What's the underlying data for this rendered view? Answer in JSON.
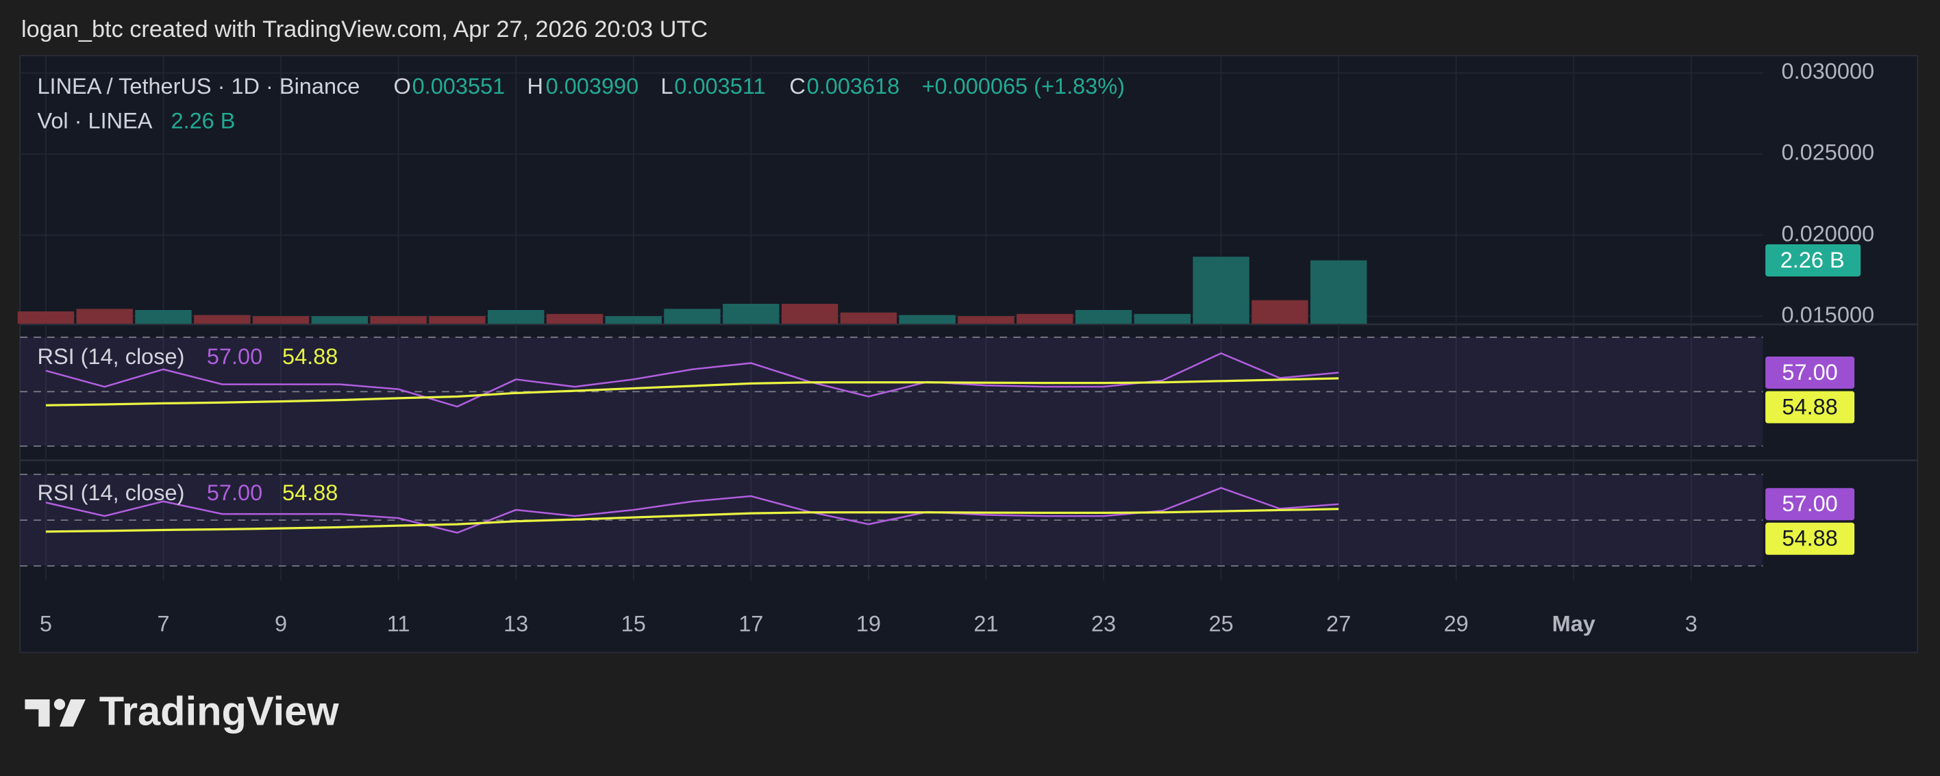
{
  "header": {
    "attribution": "logan_btc created with TradingView.com, Apr 27, 2026 20:03 UTC"
  },
  "legend": {
    "symbol": "LINEA / TetherUS · 1D · Binance",
    "open_label": "O",
    "open": "0.003551",
    "high_label": "H",
    "high": "0.003990",
    "low_label": "L",
    "low": "0.003511",
    "close_label": "C",
    "close": "0.003618",
    "change": "+0.000065 (+1.83%)"
  },
  "footer": {
    "logo": "TradingView"
  },
  "chart_data": [
    {
      "type": "bar",
      "x": [
        5,
        6,
        7,
        8,
        9,
        10,
        11,
        12,
        13,
        14,
        15,
        16,
        17,
        18,
        19,
        20,
        21,
        22,
        23,
        24,
        25,
        26,
        27
      ],
      "xlim": [
        4.56,
        34.22
      ],
      "ylim": [
        0.01454,
        0.03107
      ],
      "yticks": [
        {
          "value": 0.015,
          "label": "0.015000"
        },
        {
          "value": 0.02,
          "label": "0.020000"
        },
        {
          "value": 0.025,
          "label": "0.025000"
        },
        {
          "value": 0.03,
          "label": "0.030000"
        }
      ],
      "y2lim": [
        0,
        9.56
      ],
      "grid": true,
      "series": [
        {
          "name": "Vol · LINEA",
          "axis": "y2",
          "values": [
            0.44,
            0.53,
            0.49,
            0.31,
            0.27,
            0.27,
            0.27,
            0.27,
            0.49,
            0.35,
            0.27,
            0.53,
            0.71,
            0.71,
            0.4,
            0.31,
            0.27,
            0.35,
            0.49,
            0.35,
            2.39,
            0.84,
            2.26
          ],
          "value_labels": [
            null,
            null,
            null,
            null,
            null,
            null,
            null,
            null,
            null,
            null,
            null,
            null,
            null,
            null,
            null,
            null,
            null,
            null,
            null,
            null,
            null,
            null,
            "2.26 B"
          ],
          "colors": [
            "#7a3036",
            "#7a3036",
            "#1d6460",
            "#7a3036",
            "#7a3036",
            "#1d6460",
            "#7a3036",
            "#7a3036",
            "#1d6460",
            "#7a3036",
            "#1d6460",
            "#1d6460",
            "#1d6460",
            "#7a3036",
            "#7a3036",
            "#1d6460",
            "#7a3036",
            "#7a3036",
            "#1d6460",
            "#1d6460",
            "#1d6460",
            "#7a3036",
            "#1d6460"
          ],
          "tag_color": "#22ab94"
        }
      ]
    },
    {
      "type": "line",
      "x": [
        5,
        6,
        7,
        8,
        9,
        10,
        11,
        12,
        13,
        14,
        15,
        16,
        17,
        18,
        19,
        20,
        21,
        22,
        23,
        24,
        25,
        26,
        27
      ],
      "xlim": [
        4.56,
        34.22
      ],
      "ylim": [
        25,
        74.5
      ],
      "bands": [
        70,
        50,
        30
      ],
      "series": [
        {
          "name": "RSI (14, close)",
          "color": "#b15ede",
          "values": [
            57.7,
            51.8,
            58.2,
            52.7,
            52.7,
            52.7,
            50.9,
            44.5,
            54.5,
            51.8,
            54.5,
            58.2,
            60.5,
            53.6,
            48.2,
            53.6,
            52.3,
            51.8,
            51.8,
            54.1,
            64.1,
            55.0,
            57
          ],
          "value_labels": [
            null,
            null,
            null,
            null,
            null,
            null,
            null,
            null,
            null,
            null,
            null,
            null,
            null,
            null,
            null,
            null,
            null,
            null,
            null,
            null,
            null,
            null,
            "57.00"
          ]
        },
        {
          "color": "#e9f542",
          "values": [
            45.0,
            45.3,
            45.7,
            46.0,
            46.4,
            46.9,
            47.6,
            48.2,
            49.5,
            50.3,
            51.2,
            52.1,
            53.0,
            53.4,
            53.4,
            53.4,
            53.3,
            53.2,
            53.2,
            53.4,
            53.9,
            54.4,
            54.88
          ],
          "value_labels": [
            null,
            null,
            null,
            null,
            null,
            null,
            null,
            null,
            null,
            null,
            null,
            null,
            null,
            null,
            null,
            null,
            null,
            null,
            null,
            null,
            null,
            null,
            "54.88"
          ]
        }
      ]
    },
    {
      "type": "line",
      "x": [
        5,
        6,
        7,
        8,
        9,
        10,
        11,
        12,
        13,
        14,
        15,
        16,
        17,
        18,
        19,
        20,
        21,
        22,
        23,
        24,
        25,
        26,
        27
      ],
      "xlim": [
        4.56,
        34.22
      ],
      "xticks": [
        5,
        7,
        9,
        11,
        13,
        15,
        17,
        19,
        21,
        23,
        25,
        27,
        29,
        {
          "value": 31,
          "label": "May"
        },
        {
          "value": 33,
          "label": "3"
        }
      ],
      "ylim": [
        23.5,
        75.9
      ],
      "bands": [
        70,
        50,
        30
      ],
      "series": [
        {
          "name": "RSI (14, close)",
          "color": "#b15ede",
          "values": [
            57.7,
            51.8,
            58.2,
            52.7,
            52.7,
            52.7,
            50.9,
            44.5,
            54.5,
            51.8,
            54.5,
            58.2,
            60.5,
            53.6,
            48.2,
            53.6,
            52.3,
            51.8,
            51.8,
            54.1,
            64.1,
            55.0,
            57
          ],
          "value_labels": [
            null,
            null,
            null,
            null,
            null,
            null,
            null,
            null,
            null,
            null,
            null,
            null,
            null,
            null,
            null,
            null,
            null,
            null,
            null,
            null,
            null,
            null,
            "57.00"
          ]
        },
        {
          "color": "#e9f542",
          "values": [
            45.0,
            45.3,
            45.7,
            46.0,
            46.4,
            46.9,
            47.6,
            48.2,
            49.5,
            50.3,
            51.2,
            52.1,
            53.0,
            53.4,
            53.4,
            53.4,
            53.3,
            53.2,
            53.2,
            53.4,
            53.9,
            54.4,
            54.88
          ],
          "value_labels": [
            null,
            null,
            null,
            null,
            null,
            null,
            null,
            null,
            null,
            null,
            null,
            null,
            null,
            null,
            null,
            null,
            null,
            null,
            null,
            null,
            null,
            null,
            "54.88"
          ]
        }
      ]
    }
  ]
}
